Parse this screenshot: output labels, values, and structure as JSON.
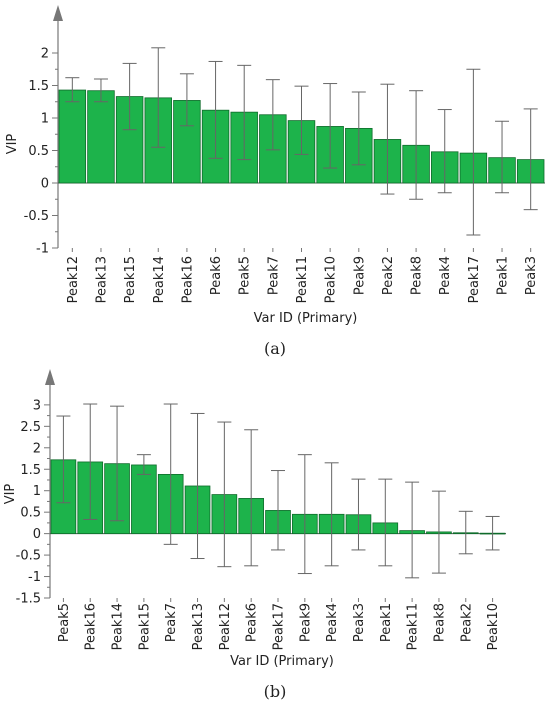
{
  "colors": {
    "bar_fill": "#1db34b",
    "bar_stroke": "#0e6b2a",
    "error_bar": "#666666",
    "axis": "#777777"
  },
  "chart_data": [
    {
      "type": "bar",
      "ylabel": "VIP",
      "xlabel": "Var ID (Primary)",
      "caption": "(a)",
      "ylim": [
        -1,
        2.2
      ],
      "yticks": [
        2,
        1.5,
        1,
        0.5,
        0,
        -0.5,
        -1
      ],
      "ytick_labels": [
        "2",
        "1.5",
        "1",
        "0.5",
        "0",
        "-0.5",
        "-1"
      ],
      "categories": [
        "Peak12",
        "Peak13",
        "Peak15",
        "Peak14",
        "Peak16",
        "Peak6",
        "Peak5",
        "Peak7",
        "Peak11",
        "Peak10",
        "Peak9",
        "Peak2",
        "Peak8",
        "Peak4",
        "Peak17",
        "Peak1",
        "Peak3"
      ],
      "values": [
        1.43,
        1.42,
        1.33,
        1.31,
        1.27,
        1.12,
        1.09,
        1.05,
        0.96,
        0.87,
        0.84,
        0.67,
        0.58,
        0.48,
        0.46,
        0.39,
        0.36
      ],
      "error_low": [
        1.25,
        1.25,
        0.82,
        0.55,
        0.88,
        0.38,
        0.36,
        0.51,
        0.44,
        0.23,
        0.28,
        -0.17,
        -0.25,
        -0.15,
        -0.8,
        -0.15,
        -0.41
      ],
      "error_high": [
        1.62,
        1.6,
        1.84,
        2.08,
        1.68,
        1.87,
        1.81,
        1.59,
        1.49,
        1.53,
        1.4,
        1.52,
        1.42,
        1.13,
        1.75,
        0.95,
        1.14
      ]
    },
    {
      "type": "bar",
      "ylabel": "VIP",
      "xlabel": "Var ID (Primary)",
      "caption": "(b)",
      "ylim": [
        -1.5,
        3.3
      ],
      "yticks": [
        3,
        2.5,
        2,
        1.5,
        1,
        0.5,
        0,
        -0.5,
        -1,
        -1.5
      ],
      "ytick_labels": [
        "3",
        "2.5",
        "2",
        "1.5",
        "1",
        "0.5",
        "0",
        "-0.5",
        "-1",
        "-1.5"
      ],
      "categories": [
        "Peak5",
        "Peak16",
        "Peak14",
        "Peak15",
        "Peak7",
        "Peak13",
        "Peak12",
        "Peak6",
        "Peak17",
        "Peak9",
        "Peak4",
        "Peak3",
        "Peak1",
        "Peak11",
        "Peak8",
        "Peak2",
        "Peak10"
      ],
      "values": [
        1.72,
        1.67,
        1.63,
        1.6,
        1.38,
        1.11,
        0.91,
        0.82,
        0.54,
        0.45,
        0.45,
        0.44,
        0.25,
        0.07,
        0.04,
        0.02,
        0.01
      ],
      "error_low": [
        0.72,
        0.33,
        0.3,
        1.38,
        -0.25,
        -0.58,
        -0.77,
        -0.75,
        -0.38,
        -0.93,
        -0.75,
        -0.38,
        -0.75,
        -1.03,
        -0.92,
        -0.47,
        -0.38
      ],
      "error_high": [
        2.74,
        3.02,
        2.97,
        1.84,
        3.02,
        2.8,
        2.6,
        2.42,
        1.47,
        1.84,
        1.65,
        1.27,
        1.27,
        1.2,
        0.99,
        0.52,
        0.4
      ]
    }
  ]
}
